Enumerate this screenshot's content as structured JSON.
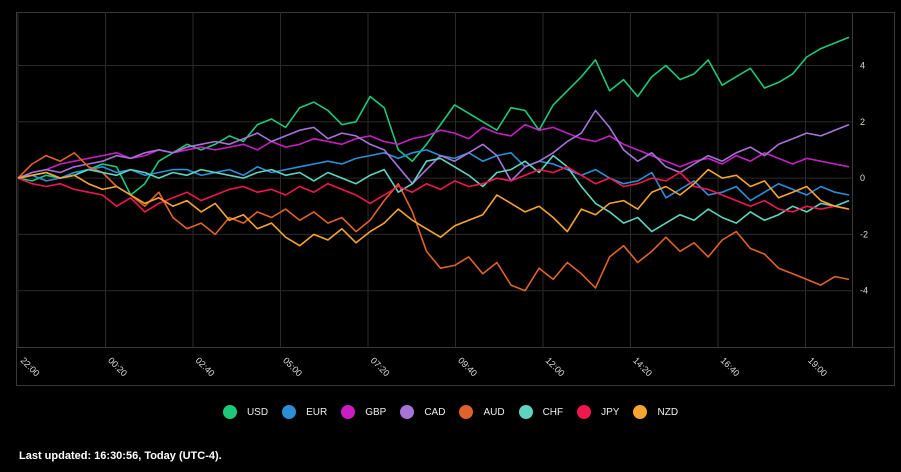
{
  "chart_data": {
    "type": "line",
    "title": "",
    "xlabel": "",
    "ylabel": "",
    "x_ticks": [
      "22:00",
      "00:20",
      "02:40",
      "05:00",
      "07:20",
      "09:40",
      "12:00",
      "14:20",
      "16:40",
      "19:00"
    ],
    "y_ticks": [
      "4",
      "2",
      "0",
      "-2",
      "-4"
    ],
    "ylim": [
      -6,
      5.9
    ],
    "grid": true,
    "legend_position": "bottom-center",
    "series": [
      {
        "name": "USD",
        "color": "#1ec87a",
        "values": [
          0,
          -0.1,
          0.1,
          0.0,
          0.2,
          0.3,
          0.5,
          0.4,
          -0.6,
          -0.2,
          0.6,
          0.9,
          1.2,
          1.0,
          1.2,
          1.5,
          1.3,
          1.9,
          2.1,
          1.8,
          2.5,
          2.7,
          2.4,
          1.9,
          2.0,
          2.9,
          2.5,
          1.0,
          0.6,
          1.2,
          1.9,
          2.6,
          2.3,
          2.0,
          1.7,
          2.5,
          2.4,
          1.7,
          2.6,
          3.1,
          3.6,
          4.2,
          3.1,
          3.5,
          2.9,
          3.6,
          4.0,
          3.5,
          3.7,
          4.2,
          3.3,
          3.6,
          3.9,
          3.2,
          3.4,
          3.7,
          4.3,
          4.6,
          4.8,
          5.0
        ]
      },
      {
        "name": "EUR",
        "color": "#2a8fd6",
        "values": [
          0,
          0.1,
          -0.1,
          0.0,
          0.2,
          0.3,
          0.4,
          0.2,
          0.3,
          0.1,
          0.2,
          0.3,
          0.3,
          0.1,
          0.2,
          0.3,
          0.1,
          0.4,
          0.2,
          0.3,
          0.4,
          0.5,
          0.6,
          0.5,
          0.7,
          0.8,
          0.9,
          0.7,
          0.9,
          1.0,
          0.8,
          0.7,
          0.9,
          0.6,
          0.8,
          0.9,
          0.4,
          0.6,
          0.5,
          0.3,
          0.1,
          0.3,
          0.0,
          -0.2,
          -0.1,
          0.2,
          -0.7,
          -0.4,
          -0.1,
          -0.6,
          -0.5,
          -0.3,
          -0.8,
          -0.5,
          -0.2,
          -0.4,
          -0.6,
          -0.3,
          -0.5,
          -0.6
        ]
      },
      {
        "name": "GBP",
        "color": "#c71fc2",
        "values": [
          0,
          0.2,
          0.3,
          0.5,
          0.6,
          0.7,
          0.8,
          0.9,
          0.7,
          0.8,
          1.0,
          0.9,
          1.0,
          1.1,
          1.0,
          1.1,
          1.2,
          1.0,
          1.3,
          1.1,
          1.2,
          1.4,
          1.3,
          1.2,
          1.4,
          1.5,
          1.3,
          1.2,
          1.4,
          1.5,
          1.7,
          1.6,
          1.4,
          1.8,
          1.6,
          1.5,
          1.9,
          1.7,
          1.8,
          1.6,
          1.4,
          1.3,
          1.5,
          1.2,
          1.0,
          0.8,
          0.6,
          0.4,
          0.6,
          0.7,
          0.5,
          0.8,
          0.6,
          0.9,
          0.7,
          0.5,
          0.7,
          0.6,
          0.5,
          0.4
        ]
      },
      {
        "name": "CAD",
        "color": "#a574d6",
        "values": [
          0,
          0.2,
          0.3,
          0.2,
          0.4,
          0.5,
          0.6,
          0.8,
          0.7,
          0.9,
          1.0,
          0.9,
          1.1,
          1.2,
          1.3,
          1.2,
          1.4,
          1.6,
          1.3,
          1.5,
          1.7,
          1.8,
          1.4,
          1.6,
          1.5,
          1.2,
          1.0,
          0.4,
          -0.2,
          0.3,
          0.8,
          0.6,
          0.9,
          1.2,
          0.8,
          -0.1,
          0.4,
          0.6,
          0.9,
          1.3,
          1.6,
          2.4,
          1.8,
          1.0,
          0.6,
          0.9,
          0.4,
          0.2,
          0.5,
          0.8,
          0.6,
          0.9,
          1.1,
          0.8,
          1.2,
          1.4,
          1.6,
          1.5,
          1.7,
          1.9
        ]
      },
      {
        "name": "AUD",
        "color": "#e0622a",
        "values": [
          0,
          0.5,
          0.8,
          0.6,
          0.9,
          0.4,
          0.2,
          -0.3,
          -0.6,
          -1.0,
          -0.5,
          -1.4,
          -1.8,
          -1.6,
          -2.0,
          -1.4,
          -1.6,
          -1.2,
          -1.4,
          -1.1,
          -1.5,
          -1.2,
          -1.6,
          -1.4,
          -1.9,
          -1.5,
          -0.8,
          -0.2,
          -1.2,
          -2.6,
          -3.2,
          -3.1,
          -2.8,
          -3.4,
          -3.0,
          -3.8,
          -4.0,
          -3.2,
          -3.6,
          -3.0,
          -3.4,
          -3.9,
          -2.8,
          -2.4,
          -3.0,
          -2.6,
          -2.1,
          -2.6,
          -2.3,
          -2.8,
          -2.2,
          -1.9,
          -2.5,
          -2.7,
          -3.2,
          -3.4,
          -3.6,
          -3.8,
          -3.5,
          -3.6
        ]
      },
      {
        "name": "CHF",
        "color": "#5fd4c0",
        "values": [
          0,
          0.1,
          0.2,
          0.0,
          0.1,
          0.3,
          0.2,
          0.1,
          0.3,
          0.2,
          0.0,
          0.2,
          0.1,
          0.3,
          0.2,
          0.1,
          0.0,
          0.2,
          0.3,
          0.1,
          0.2,
          -0.1,
          0.2,
          0.0,
          -0.2,
          0.1,
          0.3,
          -0.5,
          -0.2,
          0.6,
          0.7,
          0.4,
          0.1,
          -0.3,
          0.2,
          0.3,
          0.6,
          0.2,
          0.8,
          0.4,
          -0.3,
          -0.9,
          -1.2,
          -1.6,
          -1.4,
          -1.9,
          -1.6,
          -1.3,
          -1.5,
          -1.1,
          -1.4,
          -1.6,
          -1.2,
          -1.5,
          -1.3,
          -1.0,
          -1.2,
          -0.9,
          -1.0,
          -0.8
        ]
      },
      {
        "name": "JPY",
        "color": "#f01650",
        "values": [
          0,
          -0.2,
          -0.3,
          -0.2,
          -0.4,
          -0.5,
          -0.6,
          -1.0,
          -0.7,
          -1.2,
          -0.9,
          -0.7,
          -0.5,
          -0.8,
          -0.6,
          -0.4,
          -0.3,
          -0.5,
          -0.4,
          -0.6,
          -0.3,
          -0.5,
          -0.2,
          -0.4,
          -0.6,
          -0.9,
          -0.6,
          -0.3,
          -0.5,
          -0.2,
          -0.4,
          -0.1,
          -0.3,
          -0.2,
          0.0,
          -0.1,
          0.1,
          0.3,
          0.2,
          0.4,
          0.1,
          -0.2,
          0.0,
          -0.3,
          -0.2,
          0.0,
          -0.1,
          0.2,
          -0.3,
          -0.4,
          -0.6,
          -0.8,
          -1.0,
          -0.8,
          -1.1,
          -1.2,
          -1.0,
          -1.1,
          -1.0,
          -1.1
        ]
      },
      {
        "name": "NZD",
        "color": "#f5a530",
        "values": [
          0,
          0.1,
          0.2,
          0.0,
          0.1,
          -0.2,
          -0.4,
          -0.3,
          -0.6,
          -0.9,
          -0.7,
          -1.0,
          -0.8,
          -1.2,
          -0.9,
          -1.5,
          -1.3,
          -1.8,
          -1.6,
          -2.1,
          -2.4,
          -2.0,
          -2.2,
          -1.8,
          -2.3,
          -1.9,
          -1.6,
          -1.1,
          -1.5,
          -1.8,
          -2.1,
          -1.7,
          -1.5,
          -1.3,
          -0.6,
          -0.9,
          -1.2,
          -1.0,
          -1.4,
          -1.9,
          -1.1,
          -1.3,
          -0.9,
          -0.8,
          -1.1,
          -0.5,
          -0.3,
          -0.6,
          -0.2,
          0.3,
          0.0,
          0.1,
          -0.3,
          -0.1,
          -0.7,
          -0.5,
          -0.3,
          -0.8,
          -1.0,
          -1.1
        ]
      }
    ]
  },
  "footer": {
    "last_updated": "Last updated: 16:30:56, Today (UTC-4)."
  }
}
